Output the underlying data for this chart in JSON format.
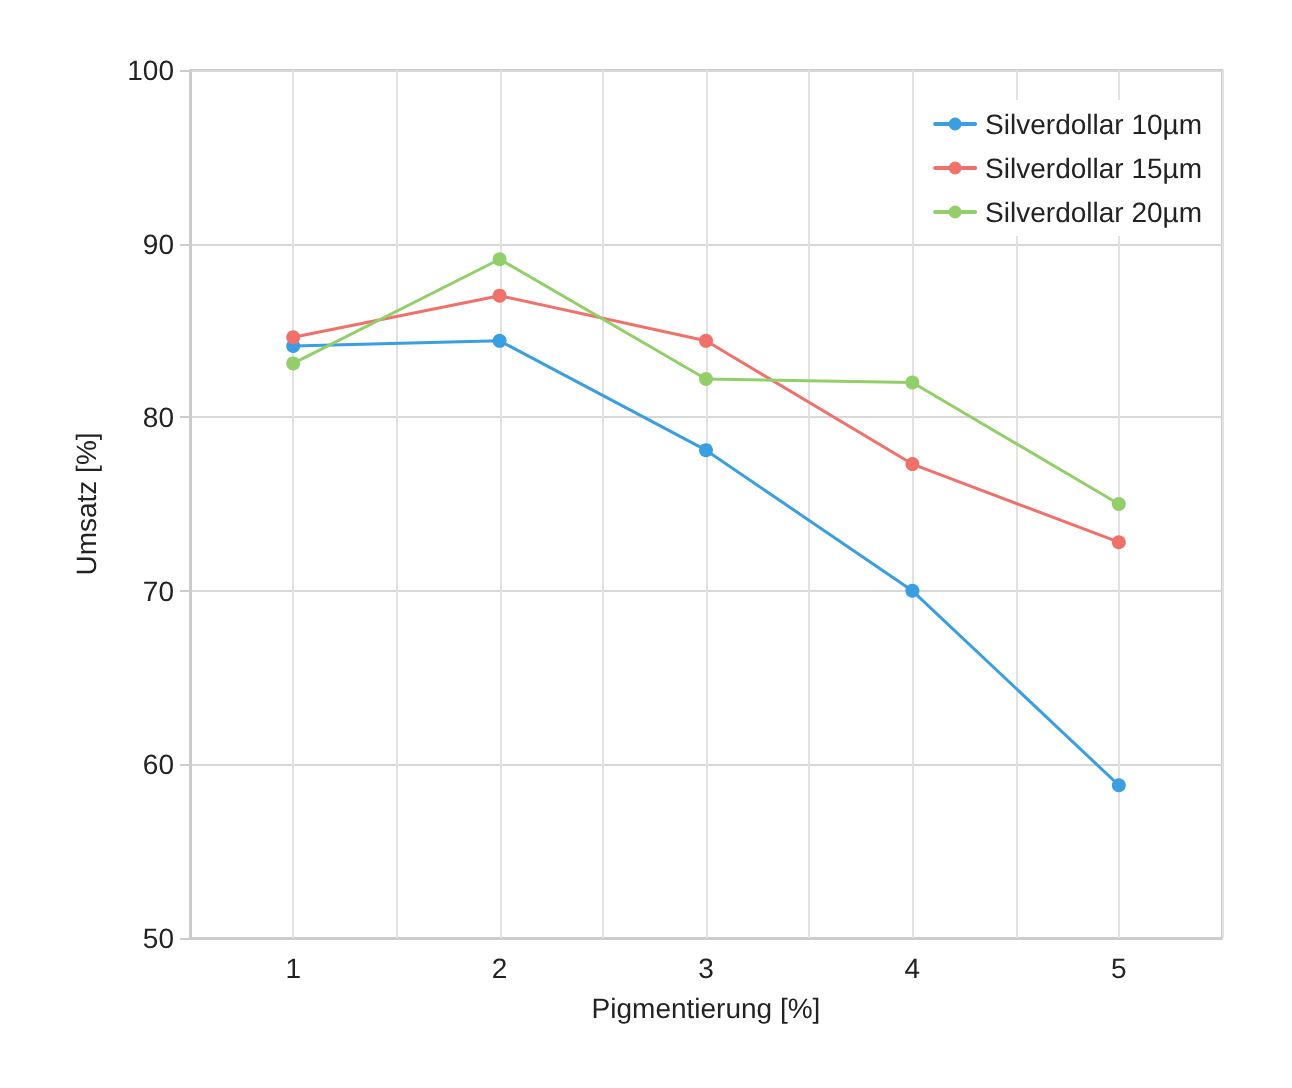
{
  "chart_data": {
    "type": "line",
    "xlabel": "Pigmentierung [%]",
    "ylabel": "Umsatz [%]",
    "x": [
      1,
      2,
      3,
      4,
      5
    ],
    "series": [
      {
        "name": "Silverdollar 10µm",
        "color": "#3a9ee0",
        "values": [
          84.1,
          84.4,
          78.1,
          70,
          58.8
        ]
      },
      {
        "name": "Silverdollar 15µm",
        "color": "#f0706a",
        "values": [
          84.6,
          87.0,
          84.4,
          77.3,
          72.8
        ]
      },
      {
        "name": "Silverdollar 20µm",
        "color": "#92cf6a",
        "values": [
          83.1,
          89.1,
          82.2,
          82.0,
          75.0
        ]
      }
    ],
    "xlim": [
      0.5,
      5.5
    ],
    "xticks": [
      {
        "value": 0.5,
        "label": null
      },
      1,
      {
        "value": 1.5,
        "label": null
      },
      2,
      {
        "value": 2.5,
        "label": null
      },
      3,
      {
        "value": 3.5,
        "label": null
      },
      4,
      {
        "value": 4.5,
        "label": null
      },
      5,
      {
        "value": 5.5,
        "label": null
      }
    ],
    "ylim": [
      50,
      100
    ],
    "yticks": [
      50,
      60,
      70,
      80,
      90,
      100
    ],
    "grid": true,
    "legend": "top right",
    "marker": "circle",
    "line_style": "solid"
  }
}
